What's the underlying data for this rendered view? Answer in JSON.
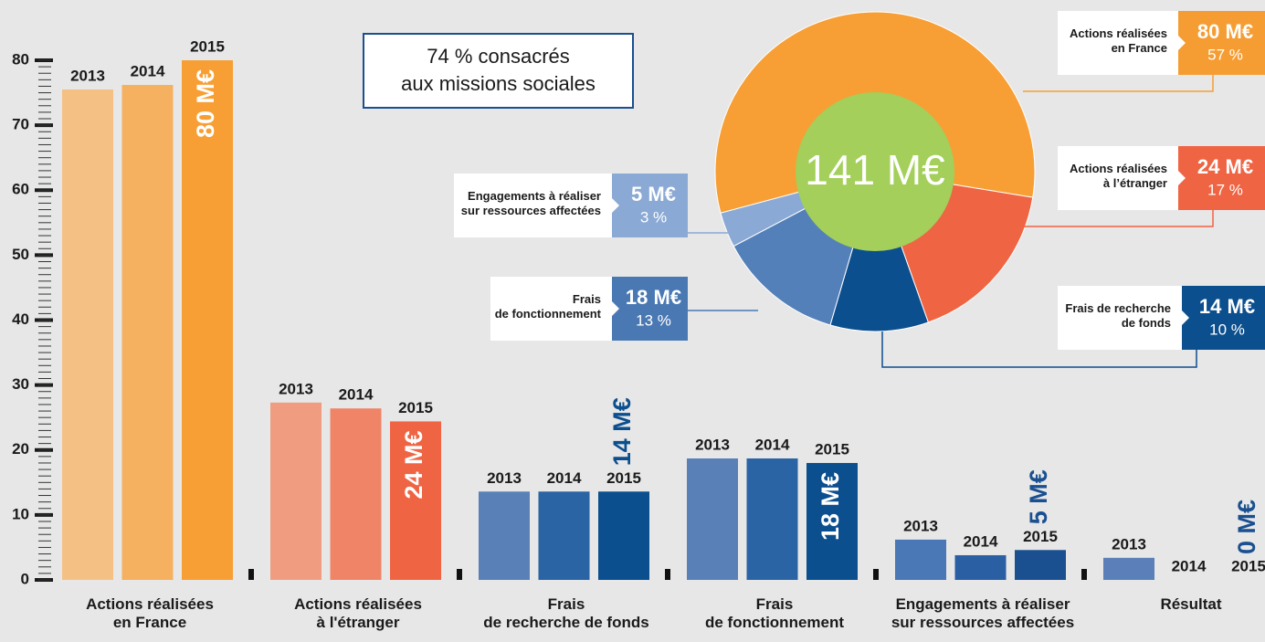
{
  "chart_data": [
    {
      "type": "bar",
      "categories": [
        "Actions réalisées\nen France",
        "Actions réalisées\nà l'étranger",
        "Frais\nde recherche de fonds",
        "Frais\nde fonctionnement",
        "Engagements à réaliser\nsur ressources affectées",
        "Résultat"
      ],
      "series": [
        {
          "name": "2013",
          "colors": [
            "#f5c084",
            "#f09c80",
            "#5a80b8",
            "#5a80b8",
            "#4a77b5",
            "#5b7fb9"
          ],
          "values": [
            75.5,
            27.3,
            13.6,
            18.7,
            6.2,
            3.4
          ]
        },
        {
          "name": "2014",
          "colors": [
            "#f5b060",
            "#f08466",
            "#2a64a4",
            "#2a64a4",
            "#2a5fa3",
            "#2a5fa3"
          ],
          "values": [
            76.2,
            26.4,
            13.6,
            18.7,
            3.8,
            0
          ]
        },
        {
          "name": "2015",
          "colors": [
            "#f79f34",
            "#ef6443",
            "#0c4f8e",
            "#0c4f8e",
            "#1a4f90",
            "#1a4f90"
          ],
          "values": [
            80,
            24.4,
            13.6,
            18,
            4.6,
            0
          ],
          "value_labels": [
            "80 M€",
            "24 M€",
            "14 M€",
            "18 M€",
            "5 M€",
            "0 M€"
          ]
        }
      ],
      "ylim": [
        0,
        80
      ],
      "yticks": [
        0,
        10,
        20,
        30,
        40,
        50,
        60,
        70,
        80
      ],
      "yminor_step": 1
    },
    {
      "type": "pie",
      "annotation": "74 % consacrés\naux missions sociales",
      "center_label": "141 M€",
      "categories": [
        "Actions réalisées\nen France",
        "Actions réalisées\nà l’étranger",
        "Frais de recherche\nde fonds",
        "Frais\nde fonctionnement",
        "Engagements à réaliser\nsur ressources affectées"
      ],
      "values": [
        80,
        24,
        14,
        18,
        5
      ],
      "value_labels": [
        "80 M€",
        "24 M€",
        "14 M€",
        "18 M€",
        "5 M€"
      ],
      "percent_labels": [
        "57 %",
        "17 %",
        "10 %",
        "13 %",
        "3 %"
      ],
      "colors": [
        "#f79f34",
        "#ef6443",
        "#0c4f8e",
        "#5480b9",
        "#8aa9d4"
      ],
      "box_colors": [
        "#f59d33",
        "#ef6443",
        "#0c4f8e",
        "#4a78b3",
        "#8aa9d4"
      ],
      "center_color": "#a3cf5a"
    }
  ]
}
